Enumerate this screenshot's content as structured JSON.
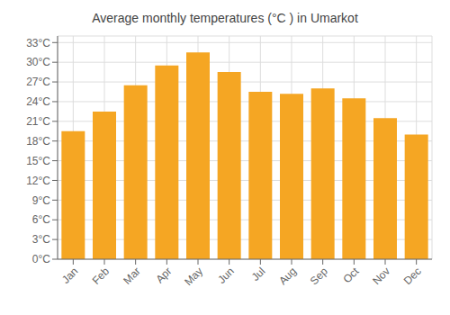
{
  "chart_data": {
    "type": "bar",
    "title": "Average monthly temperatures (°C ) in Umarkot",
    "categories": [
      "Jan",
      "Feb",
      "Mar",
      "Apr",
      "May",
      "Jun",
      "Jul",
      "Aug",
      "Sep",
      "Oct",
      "Nov",
      "Dec"
    ],
    "values": [
      19.5,
      22.5,
      26.5,
      29.5,
      31.5,
      28.5,
      25.5,
      25.2,
      26.0,
      24.5,
      21.5,
      19.0
    ],
    "color": "#F5A623",
    "ylim": [
      0,
      34
    ],
    "yticks": [
      {
        "value": 0,
        "label": "0°C"
      },
      {
        "value": 3,
        "label": "3°C"
      },
      {
        "value": 6,
        "label": "6°C"
      },
      {
        "value": 9,
        "label": "9°C"
      },
      {
        "value": 12,
        "label": "12°C"
      },
      {
        "value": 15,
        "label": "15°C"
      },
      {
        "value": 18,
        "label": "18°C"
      },
      {
        "value": 21,
        "label": "21°C"
      },
      {
        "value": 24,
        "label": "24°C"
      },
      {
        "value": 27,
        "label": "27°C"
      },
      {
        "value": 30,
        "label": "30°C"
      },
      {
        "value": 33,
        "label": "33°C"
      }
    ],
    "grid": true
  }
}
